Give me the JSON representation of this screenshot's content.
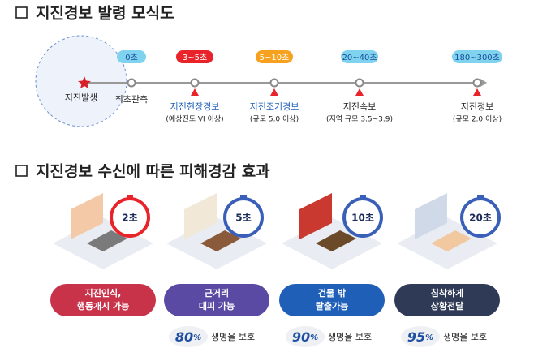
{
  "section1": {
    "title": "지진경보 발령 모식도",
    "origin": "지진발생",
    "stages": [
      {
        "time": "0초",
        "label": "최초관측"
      },
      {
        "time": "3~5초",
        "label": "지진현장경보",
        "note": "(예상진도 VI 이상)"
      },
      {
        "time": "5~10초",
        "label": "지진조기경보",
        "note": "(규모 5.0 이상)"
      },
      {
        "time": "20~40초",
        "label": "지진속보",
        "note": "(지역 규모 3.5~3.9)"
      },
      {
        "time": "180~300초",
        "label": "지진정보",
        "note": "(규모 2.0 이상)"
      }
    ]
  },
  "section2": {
    "title": "지진경보 수신에 따른 피해경감 효과",
    "cards": [
      {
        "timer": "2초",
        "effect": [
          "지진인식,",
          "행동개시 가능"
        ]
      },
      {
        "timer": "5초",
        "effect": [
          "근거리",
          "대피 가능"
        ]
      },
      {
        "timer": "10초",
        "effect": [
          "건물 밖",
          "탈출가능"
        ]
      },
      {
        "timer": "20초",
        "effect": [
          "침착하게",
          "상황전달"
        ]
      }
    ],
    "survival": [
      {
        "value": "80",
        "unit": "%",
        "text": "생명을 보호"
      },
      {
        "value": "90",
        "unit": "%",
        "text": "생명을 보호"
      },
      {
        "value": "95",
        "unit": "%",
        "text": "생명을 보호"
      }
    ]
  }
}
